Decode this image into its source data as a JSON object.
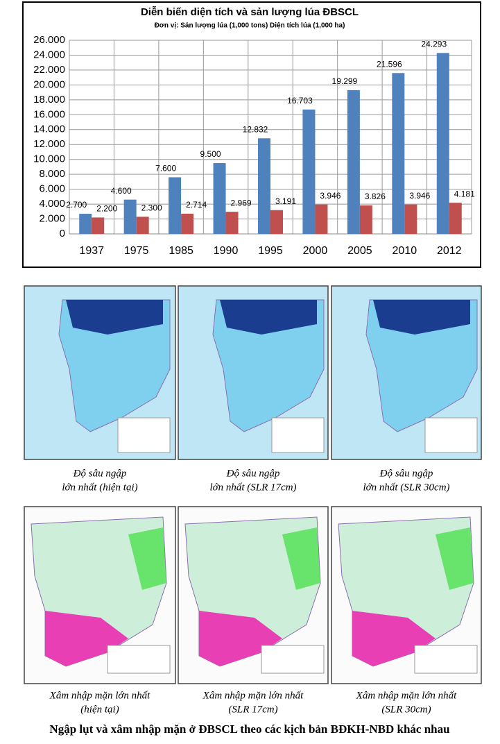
{
  "chart_data": {
    "type": "bar",
    "title": "Diễn biến diện tích và sản lượng lúa ĐBSCL",
    "subtitle": "Đơn vị: Sản lượng lúa (1,000 tons) Diện tích lúa (1,000 ha)",
    "categories": [
      "1937",
      "1975",
      "1985",
      "1990",
      "1995",
      "2000",
      "2005",
      "2010",
      "2012"
    ],
    "series": [
      {
        "color": "#4f81bd",
        "values": [
          2700,
          4600,
          7600,
          9500,
          12832,
          16703,
          19299,
          21596,
          24293
        ],
        "value_labels": [
          "2.700",
          "4.600",
          "7.600",
          "9.500",
          "12.832",
          "16.703",
          "19.299",
          "21.596",
          "24.293"
        ]
      },
      {
        "color": "#c0504d",
        "values": [
          2200,
          2300,
          2714,
          2969,
          3191,
          3946,
          3826,
          3946,
          4181
        ],
        "value_labels": [
          "2.200",
          "2.300",
          "2.714",
          "2.969",
          "3.191",
          "3.946",
          "3.826",
          "3.946",
          "4.181"
        ]
      }
    ],
    "ylim": [
      0,
      26000
    ],
    "yticks": [
      0,
      {
        "value": 2000,
        "label": "2.000"
      },
      {
        "value": 4000,
        "label": "4.000"
      },
      {
        "value": 6000,
        "label": "6.000"
      },
      {
        "value": 8000,
        "label": "8.000"
      },
      {
        "value": 10000,
        "label": "10.000"
      },
      {
        "value": 12000,
        "label": "12.000"
      },
      {
        "value": 14000,
        "label": "14.000"
      },
      {
        "value": 16000,
        "label": "16.000"
      },
      {
        "value": 18000,
        "label": "18.000"
      },
      {
        "value": 20000,
        "label": "20.000"
      },
      {
        "value": 22000,
        "label": "22.000"
      },
      {
        "value": 24000,
        "label": "24.000"
      },
      {
        "value": 26000,
        "label": "26.000"
      }
    ],
    "grid": true
  },
  "maps": [
    {
      "caption": [
        "Độ sâu ngập",
        "lớn nhất (hiện tại)"
      ]
    },
    {
      "caption": [
        "Độ sâu ngập",
        "lớn nhất (SLR 17cm)"
      ]
    },
    {
      "caption": [
        "Độ sâu ngập",
        "lớn nhất (SLR 30cm)"
      ]
    },
    {
      "caption": [
        "Xâm nhập mặn lớn nhất",
        "(hiện tại)"
      ]
    },
    {
      "caption": [
        "Xâm nhập mặn lớn nhất",
        "(SLR 17cm)"
      ]
    },
    {
      "caption": [
        "Xâm nhập mặn lớn nhất",
        "(SLR 30cm)"
      ]
    }
  ],
  "caption": "Ngập lụt và xâm nhập mặn ở ĐBSCL theo các kịch bản BĐKH-NBD khác nhau"
}
